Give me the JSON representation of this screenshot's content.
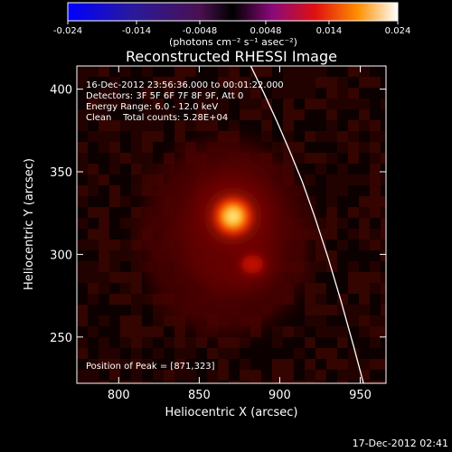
{
  "chart_data": {
    "type": "heatmap",
    "title": "Reconstructed RHESSI Image",
    "xlabel": "Heliocentric X (arcsec)",
    "ylabel": "Heliocentric Y (arcsec)",
    "xlim": [
      774,
      966
    ],
    "ylim": [
      222,
      414
    ],
    "xticks": [
      800,
      850,
      900,
      950
    ],
    "yticks": [
      250,
      300,
      350,
      400
    ],
    "colorbar": {
      "min": -0.024,
      "max": 0.024,
      "ticks": [
        "-0.024",
        "-0.014",
        "-0.0048",
        "0.0048",
        "0.014",
        "0.024"
      ],
      "tick_values": [
        -0.024,
        -0.014,
        -0.0048,
        0.0048,
        0.014,
        0.024
      ],
      "label": "(photons cm⁻² s⁻¹ asec⁻²)"
    },
    "annotations": [
      "16-Dec-2012 23:56:36.000 to 00:01:22.000",
      "Detectors: 3F 5F 6F 7F 8F 9F, Att 0",
      "Energy Range: 6.0 - 12.0 keV",
      "Clean    Total counts: 5.28E+04"
    ],
    "peak_label": "Position of Peak = [871,323]",
    "sources": [
      {
        "x": 871,
        "y": 323,
        "value": 0.024
      },
      {
        "x": 883,
        "y": 294,
        "value": 0.012
      }
    ],
    "limb_curve": {
      "x": [
        882,
        890,
        898,
        906,
        914,
        922,
        930,
        938,
        946,
        952
      ],
      "y": [
        414,
        398,
        381,
        363,
        344,
        322,
        298,
        272,
        244,
        222
      ]
    },
    "grid": false,
    "legend": "none"
  },
  "footer": {
    "timestamp": "17-Dec-2012 02:41"
  }
}
